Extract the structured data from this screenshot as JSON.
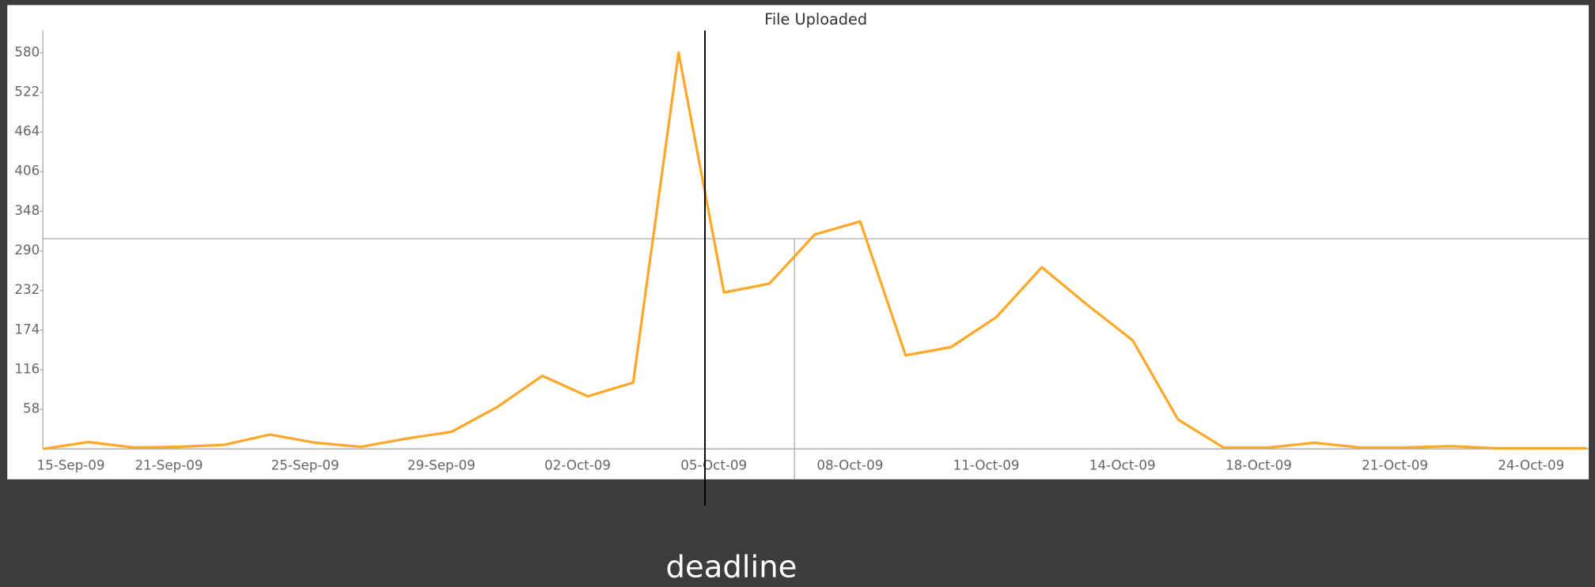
{
  "chart_data": {
    "type": "line",
    "title": "File Uploaded",
    "categories": [
      "15-Sep-09",
      null,
      null,
      "21-Sep-09",
      null,
      null,
      "25-Sep-09",
      null,
      null,
      "29-Sep-09",
      null,
      null,
      "02-Oct-09",
      null,
      null,
      "05-Oct-09",
      null,
      null,
      "08-Oct-09",
      null,
      null,
      "11-Oct-09",
      null,
      null,
      "14-Oct-09",
      null,
      null,
      "18-Oct-09",
      null,
      null,
      "21-Oct-09",
      null,
      null,
      "24-Oct-09",
      null
    ],
    "series": [
      {
        "name": "File Uploaded",
        "color": "#ffa726",
        "values": [
          0,
          10,
          2,
          3,
          6,
          21,
          9,
          3,
          15,
          25,
          61,
          107,
          77,
          97,
          580,
          229,
          242,
          314,
          333,
          137,
          149,
          193,
          266,
          211,
          159,
          43,
          2,
          2,
          9,
          2,
          2,
          4,
          1,
          1,
          1
        ]
      }
    ],
    "ylim": [
      0,
      580
    ],
    "yticks": [
      58,
      116,
      174,
      232,
      290,
      348,
      406,
      464,
      522,
      580
    ],
    "annotation": "deadline"
  }
}
